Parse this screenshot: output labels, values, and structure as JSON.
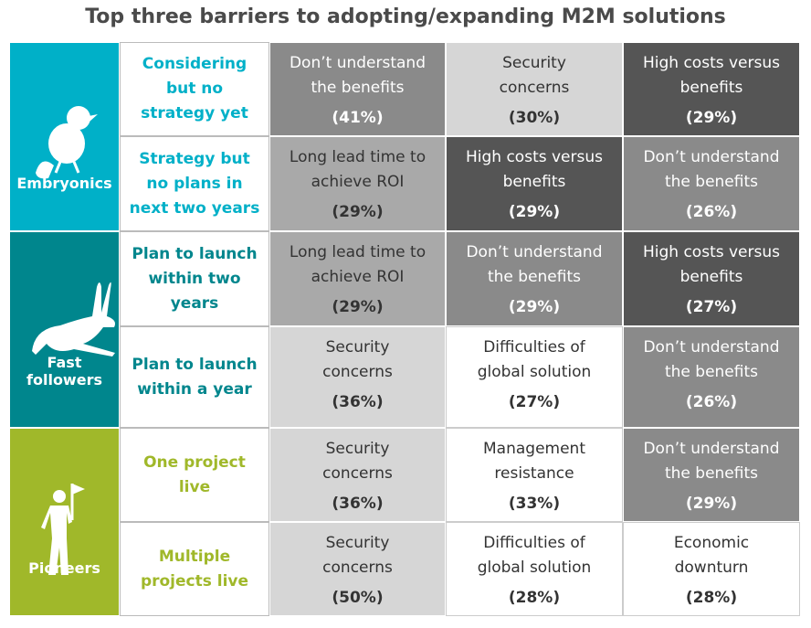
{
  "title": "Top three barriers to adopting/expanding M2M solutions",
  "groups": [
    {
      "label": "Embryonics",
      "color": "#00b0c8",
      "icon": "chick",
      "rows": [
        {
          "stage": "Considering but no strategy yet",
          "cells": [
            {
              "label": [
                "Don’t understand",
                "the benefits"
              ],
              "pct": "(41%)",
              "color": "#8a8a8a"
            },
            {
              "label": [
                "Security",
                "concerns"
              ],
              "pct": "(30%)",
              "color": "#d6d6d6"
            },
            {
              "label": [
                "High costs versus",
                "benefits"
              ],
              "pct": "(29%)",
              "color": "#555555"
            }
          ]
        },
        {
          "stage": "Strategy but no plans in next two years",
          "cells": [
            {
              "label": [
                "Long lead time to",
                "achieve ROI"
              ],
              "pct": "(29%)",
              "color": "#a9a9a9"
            },
            {
              "label": [
                "High costs versus",
                "benefits"
              ],
              "pct": "(29%)",
              "color": "#555555"
            },
            {
              "label": [
                "Don’t understand",
                "the benefits"
              ],
              "pct": "(26%)",
              "color": "#8a8a8a"
            }
          ]
        }
      ]
    },
    {
      "label": "Fast followers",
      "color": "#00868d",
      "icon": "rabbit",
      "rows": [
        {
          "stage": "Plan to launch within two years",
          "cells": [
            {
              "label": [
                "Long lead time to",
                "achieve ROI"
              ],
              "pct": "(29%)",
              "color": "#a9a9a9"
            },
            {
              "label": [
                "Don’t understand",
                "the benefits"
              ],
              "pct": "(29%)",
              "color": "#8a8a8a"
            },
            {
              "label": [
                "High costs versus",
                "benefits"
              ],
              "pct": "(27%)",
              "color": "#555555"
            }
          ]
        },
        {
          "stage": "Plan to launch within a year",
          "cells": [
            {
              "label": [
                "Security",
                "concerns"
              ],
              "pct": "(36%)",
              "color": "#d6d6d6"
            },
            {
              "label": [
                "Difficulties of",
                "global solution"
              ],
              "pct": "(27%)",
              "color": "#ffffff"
            },
            {
              "label": [
                "Don’t understand",
                "the benefits"
              ],
              "pct": "(26%)",
              "color": "#8a8a8a"
            }
          ]
        }
      ]
    },
    {
      "label": "Pioneers",
      "color": "#a0b82a",
      "icon": "person",
      "rows": [
        {
          "stage": "One project live",
          "cells": [
            {
              "label": [
                "Security",
                "concerns"
              ],
              "pct": "(36%)",
              "color": "#d6d6d6"
            },
            {
              "label": [
                "Management",
                "resistance"
              ],
              "pct": "(33%)",
              "color": "#ffffff"
            },
            {
              "label": [
                "Don’t understand",
                "the benefits"
              ],
              "pct": "(29%)",
              "color": "#8a8a8a"
            }
          ]
        },
        {
          "stage": "Multiple projects live",
          "cells": [
            {
              "label": [
                "Security",
                "concerns"
              ],
              "pct": "(50%)",
              "color": "#d6d6d6"
            },
            {
              "label": [
                "Difficulties of",
                "global solution"
              ],
              "pct": "(28%)",
              "color": "#ffffff"
            },
            {
              "label": [
                "Economic",
                "downturn"
              ],
              "pct": "(28%)",
              "color": "#ffffff"
            }
          ]
        }
      ]
    }
  ]
}
